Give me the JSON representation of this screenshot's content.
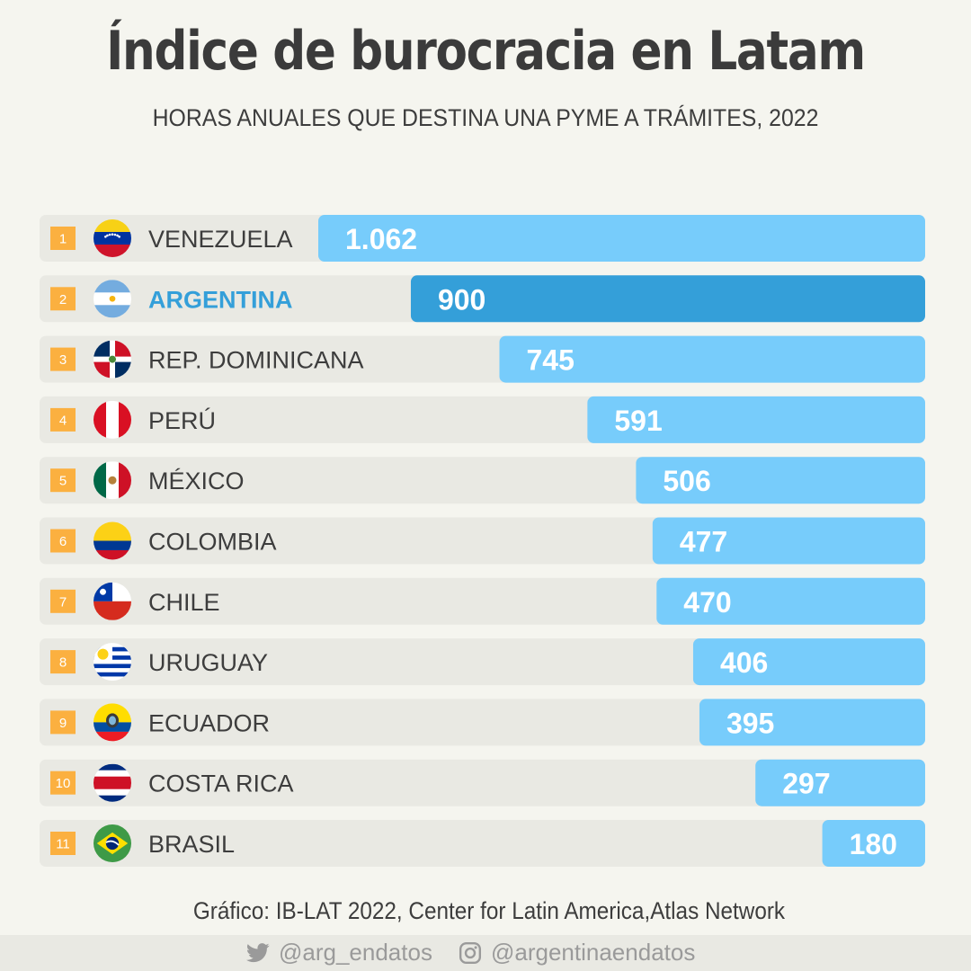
{
  "title": "Índice de burocracia en Latam",
  "subtitle": "HORAS ANUALES QUE DESTINA UNA PYME A TRÁMITES, 2022",
  "source": "Gráfico: IB-LAT 2022, Center for Latin America,Atlas Network",
  "social": {
    "twitter": "@arg_endatos",
    "instagram": "@argentinaendatos",
    "twitter_icon": "twitter-bird-icon",
    "instagram_icon": "instagram-icon"
  },
  "colors": {
    "bar": "#77ccfb",
    "highlight": "#349fd9",
    "rank": "#fbb040",
    "row_bg": "#e9e9e3"
  },
  "chart_data": {
    "type": "bar",
    "orientation": "horizontal",
    "highlight": "ARGENTINA",
    "xlim": [
      0,
      1062
    ],
    "rows": [
      {
        "rank": "1",
        "country": "VENEZUELA",
        "label": "1.062",
        "value": 1062,
        "flag": "venezuela-flag-icon"
      },
      {
        "rank": "2",
        "country": "ARGENTINA",
        "label": "900",
        "value": 900,
        "flag": "argentina-flag-icon"
      },
      {
        "rank": "3",
        "country": "REP. DOMINICANA",
        "label": "745",
        "value": 745,
        "flag": "dominican-republic-flag-icon"
      },
      {
        "rank": "4",
        "country": "PERÚ",
        "label": "591",
        "value": 591,
        "flag": "peru-flag-icon"
      },
      {
        "rank": "5",
        "country": "MÉXICO",
        "label": "506",
        "value": 506,
        "flag": "mexico-flag-icon"
      },
      {
        "rank": "6",
        "country": "COLOMBIA",
        "label": "477",
        "value": 477,
        "flag": "colombia-flag-icon"
      },
      {
        "rank": "7",
        "country": "CHILE",
        "label": "470",
        "value": 470,
        "flag": "chile-flag-icon"
      },
      {
        "rank": "8",
        "country": "URUGUAY",
        "label": "406",
        "value": 406,
        "flag": "uruguay-flag-icon"
      },
      {
        "rank": "9",
        "country": "ECUADOR",
        "label": "395",
        "value": 395,
        "flag": "ecuador-flag-icon"
      },
      {
        "rank": "10",
        "country": "COSTA RICA",
        "label": "297",
        "value": 297,
        "flag": "costa-rica-flag-icon"
      },
      {
        "rank": "11",
        "country": "BRASIL",
        "label": "180",
        "value": 180,
        "flag": "brazil-flag-icon"
      }
    ]
  }
}
